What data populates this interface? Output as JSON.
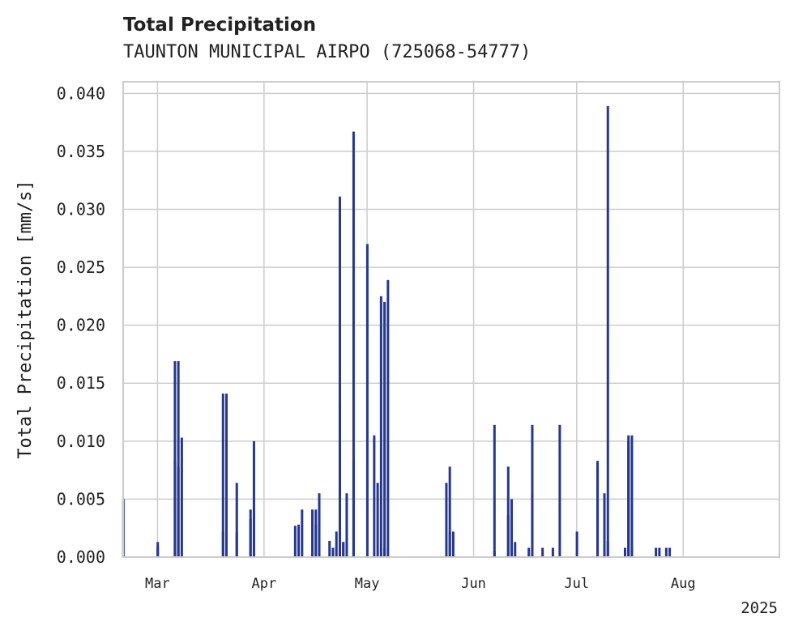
{
  "chart_data": {
    "type": "bar",
    "title": "Total Precipitation",
    "subtitle": "TAUNTON MUNICIPAL AIRPO (725068-54777)",
    "ylabel": "Total Precipitation [mm/s]",
    "xlabel": "",
    "ylim": [
      0,
      0.041
    ],
    "xlim": [
      "2025-02-19",
      "2025-08-29"
    ],
    "x_ticks": [
      {
        "date": "2025-03-01",
        "label": "Mar"
      },
      {
        "date": "2025-04-01",
        "label": "Apr"
      },
      {
        "date": "2025-05-01",
        "label": "May"
      },
      {
        "date": "2025-06-01",
        "label": "Jun"
      },
      {
        "date": "2025-07-01",
        "label": "Jul"
      },
      {
        "date": "2025-08-01",
        "label": "Aug"
      }
    ],
    "year_label": "2025",
    "y_ticks": [
      "0.000",
      "0.005",
      "0.010",
      "0.015",
      "0.020",
      "0.025",
      "0.030",
      "0.035",
      "0.040"
    ],
    "grid": true,
    "bar_color": "#26378f",
    "x": [
      "2025-02-19",
      "2025-02-29",
      "2025-03-01",
      "2025-03-06",
      "2025-03-06",
      "2025-03-07",
      "2025-03-07",
      "2025-03-08",
      "2025-03-20",
      "2025-03-20",
      "2025-03-21",
      "2025-03-24",
      "2025-03-24",
      "2025-03-28",
      "2025-03-28",
      "2025-03-29",
      "2025-04-10",
      "2025-04-11",
      "2025-04-12",
      "2025-04-15",
      "2025-04-16",
      "2025-04-16",
      "2025-04-17",
      "2025-04-20",
      "2025-04-21",
      "2025-04-22",
      "2025-04-23",
      "2025-04-23",
      "2025-04-24",
      "2025-04-24",
      "2025-04-25",
      "2025-04-27",
      "2025-04-27",
      "2025-05-01",
      "2025-05-03",
      "2025-05-04",
      "2025-05-05",
      "2025-05-06",
      "2025-05-06",
      "2025-05-07",
      "2025-05-24",
      "2025-05-25",
      "2025-05-25",
      "2025-05-26",
      "2025-06-07",
      "2025-06-07",
      "2025-06-11",
      "2025-06-11",
      "2025-06-12",
      "2025-06-13",
      "2025-06-17",
      "2025-06-18",
      "2025-06-18",
      "2025-06-21",
      "2025-06-24",
      "2025-06-26",
      "2025-07-01",
      "2025-07-07",
      "2025-07-07",
      "2025-07-09",
      "2025-07-10",
      "2025-07-10",
      "2025-07-15",
      "2025-07-16",
      "2025-07-16",
      "2025-07-17",
      "2025-07-17",
      "2025-07-24",
      "2025-07-25",
      "2025-07-27",
      "2025-07-28"
    ],
    "values": [
      0.005,
      0.0009,
      0.0013,
      0.0169,
      0.0083,
      0.0078,
      0.0169,
      0.0103,
      0.0141,
      0.0022,
      0.0141,
      0.0064,
      0.0021,
      0.0041,
      0.0033,
      0.01,
      0.0027,
      0.0028,
      0.0041,
      0.0041,
      0.0041,
      0.0028,
      0.0055,
      0.0014,
      0.0008,
      0.0022,
      0.0311,
      0.0133,
      0.0013,
      0.0013,
      0.0055,
      0.0083,
      0.0367,
      0.027,
      0.0105,
      0.0064,
      0.0225,
      0.0008,
      0.022,
      0.0239,
      0.0064,
      0.0022,
      0.0078,
      0.0022,
      0.0114,
      0.0005,
      0.0078,
      0.0036,
      0.005,
      0.0013,
      0.0008,
      0.0055,
      0.0114,
      0.0008,
      0.0008,
      0.0114,
      0.0022,
      0.0083,
      0.0078,
      0.0055,
      0.0014,
      0.0389,
      0.0008,
      0.0105,
      0.01,
      0.0105,
      0.0008,
      0.0008,
      0.0008,
      0.0008,
      0.0008
    ]
  }
}
